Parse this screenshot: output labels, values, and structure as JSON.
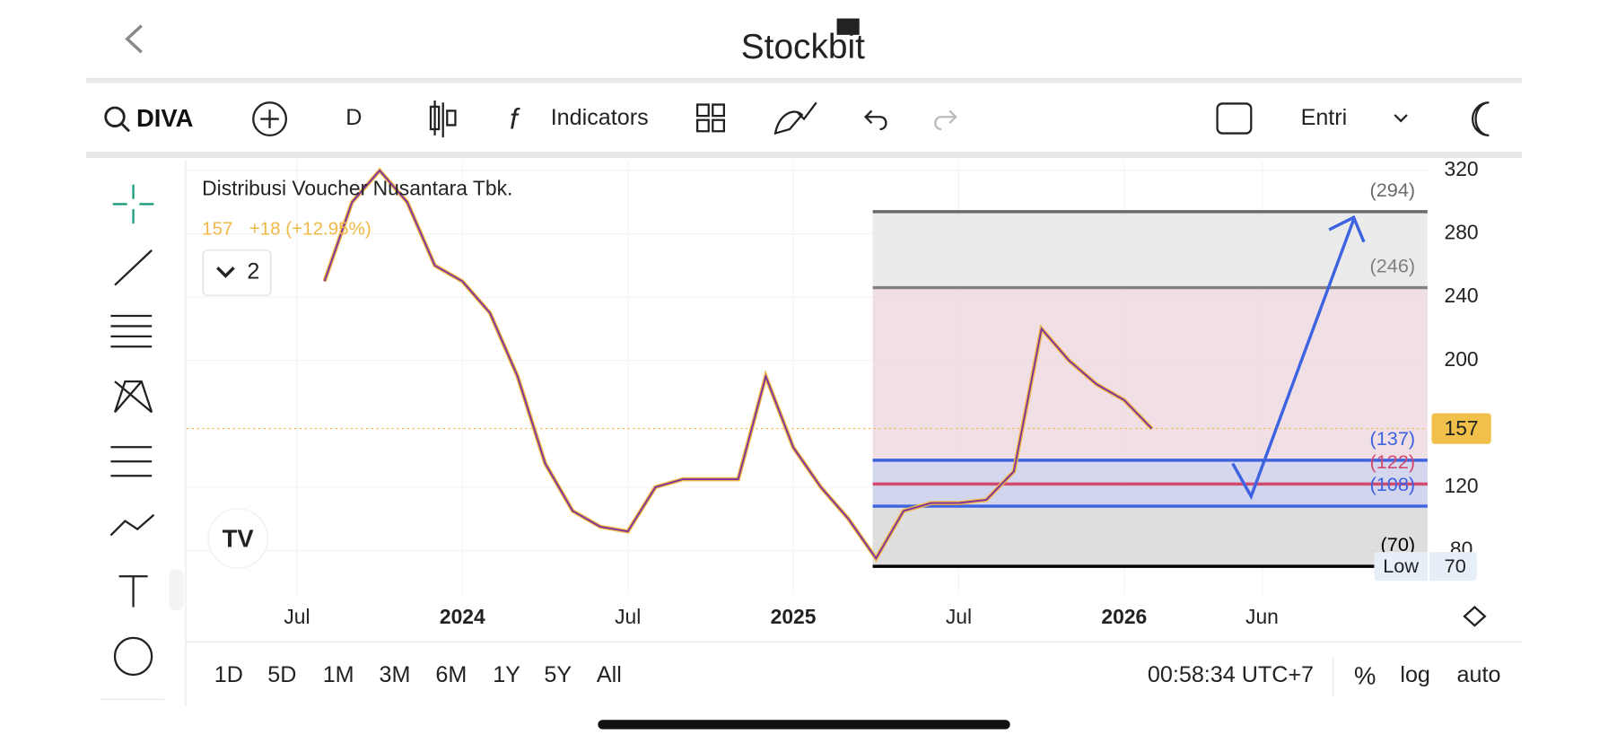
{
  "header": {
    "logo": "Stockbit"
  },
  "toolbar": {
    "symbol": "DIVA",
    "interval": "D",
    "indicators": "Indicators",
    "order": "Entri"
  },
  "legend": {
    "name": "Distribusi Voucher Nusantara Tbk.",
    "price": "157",
    "change": "+18 (+12.95%)",
    "count": "2"
  },
  "ranges": [
    "1D",
    "5D",
    "1M",
    "3M",
    "6M",
    "1Y",
    "5Y",
    "All"
  ],
  "footer": {
    "clock": "00:58:34 UTC+7",
    "percent": "%",
    "log": "log",
    "auto": "auto"
  },
  "chart_data": {
    "type": "line",
    "ylim": [
      52,
      326
    ],
    "yticks": [
      80,
      120,
      200,
      240,
      280,
      320
    ],
    "xlim": [
      "2023-03",
      "2026-12"
    ],
    "xticks": [
      {
        "value": "2023-07",
        "label": "Jul"
      },
      {
        "value": "2024-01",
        "label": "2024"
      },
      {
        "value": "2024-07",
        "label": "Jul"
      },
      {
        "value": "2025-01",
        "label": "2025"
      },
      {
        "value": "2025-07",
        "label": "Jul"
      },
      {
        "value": "2026-01",
        "label": "2026"
      },
      {
        "value": "2026-06",
        "label": "Jun"
      }
    ],
    "price": {
      "color": "#7b2fa0",
      "x": [
        "2023-08",
        "2023-09",
        "2023-10",
        "2023-11",
        "2023-12",
        "2024-01",
        "2024-02",
        "2024-03",
        "2024-04",
        "2024-05",
        "2024-06",
        "2024-07",
        "2024-08",
        "2024-09",
        "2024-10",
        "2024-11",
        "2024-12",
        "2025-01",
        "2025-02",
        "2025-03",
        "2025-04",
        "2025-05",
        "2025-06",
        "2025-07",
        "2025-08",
        "2025-09",
        "2025-10",
        "2025-11",
        "2025-12",
        "2026-01",
        "2026-02"
      ],
      "values": [
        250,
        300,
        320,
        300,
        260,
        250,
        230,
        190,
        135,
        105,
        95,
        92,
        120,
        125,
        125,
        125,
        190,
        145,
        120,
        100,
        75,
        105,
        110,
        110,
        112,
        130,
        220,
        200,
        185,
        175,
        157
      ]
    },
    "last": {
      "value": 157,
      "label": "157"
    },
    "low": {
      "name": "Low",
      "value": 70,
      "label": "70"
    },
    "levels": [
      {
        "value": 294,
        "label": "(294)",
        "color": "#6b6b6b"
      },
      {
        "value": 246,
        "label": "(246)",
        "color": "#808080"
      },
      {
        "value": 137,
        "label": "(137)",
        "color": "#3d63e0"
      },
      {
        "value": 122,
        "label": "(122)",
        "color": "#d24a6e"
      },
      {
        "value": 108,
        "label": "(108)",
        "color": "#3d63e0"
      },
      {
        "value": 70,
        "label": "(70)",
        "color": "#000000"
      }
    ]
  }
}
